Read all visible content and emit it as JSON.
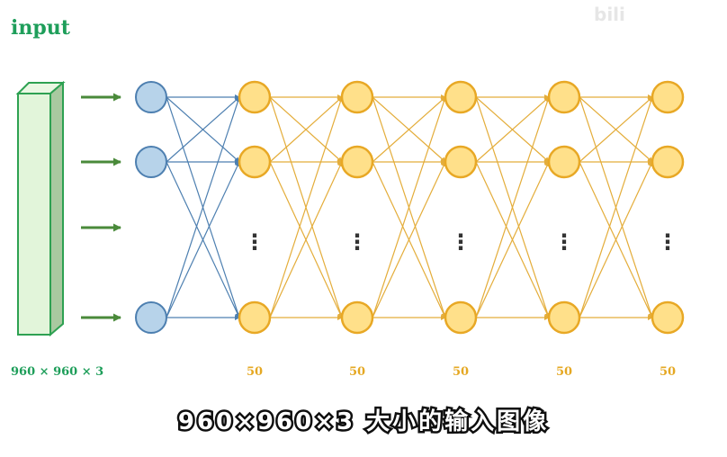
{
  "title": "input",
  "input_dims": "960 × 960 × 3",
  "layers": [
    {
      "label": "50"
    },
    {
      "label": "50"
    },
    {
      "label": "50"
    },
    {
      "label": "50"
    },
    {
      "label": "50"
    }
  ],
  "ellipsis": "⋮",
  "subtitle": "960×960×3 大小的输入图像",
  "watermark": "bili",
  "colors": {
    "green": "#1e9e5a",
    "arrow_green": "#4a8a3a",
    "block_fill": "#e2f5da",
    "block_side": "#a9c9a0",
    "blue_node": "#b7d3ea",
    "blue_stroke": "#4d7fb0",
    "yellow_node": "#ffe08a",
    "yellow_stroke": "#e8a825",
    "yellow_edge": "#e4ad3a"
  }
}
